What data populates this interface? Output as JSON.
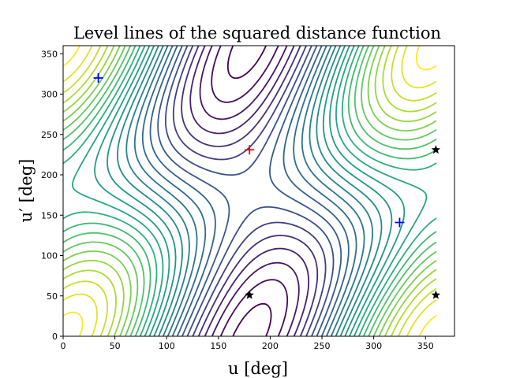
{
  "chart_data": {
    "type": "contour",
    "title": "Level lines of the squared distance function",
    "xlabel": "u [deg]",
    "ylabel": "u′ [deg]",
    "xlim": [
      0,
      378
    ],
    "ylim": [
      0,
      360
    ],
    "xticks": [
      0,
      50,
      100,
      150,
      200,
      250,
      300,
      350
    ],
    "yticks": [
      0,
      50,
      100,
      150,
      200,
      250,
      300,
      350
    ],
    "grid": false,
    "colormap": "viridis",
    "maximum_marker": {
      "u": 180,
      "u_prime": 231,
      "symbol": "+",
      "color": "#ff0000"
    },
    "saddle_markers": [
      {
        "u": 34,
        "u_prime": 320,
        "symbol": "+",
        "color": "#0000ff"
      },
      {
        "u": 325,
        "u_prime": 141,
        "symbol": "+",
        "color": "#0000ff"
      }
    ],
    "star_markers": [
      {
        "u": 180,
        "u_prime": 51,
        "symbol": "★",
        "color": "#000000"
      },
      {
        "u": 360,
        "u_prime": 51,
        "symbol": "★",
        "color": "#000000"
      },
      {
        "u": 360,
        "u_prime": 231,
        "symbol": "★",
        "color": "#000000"
      }
    ]
  }
}
